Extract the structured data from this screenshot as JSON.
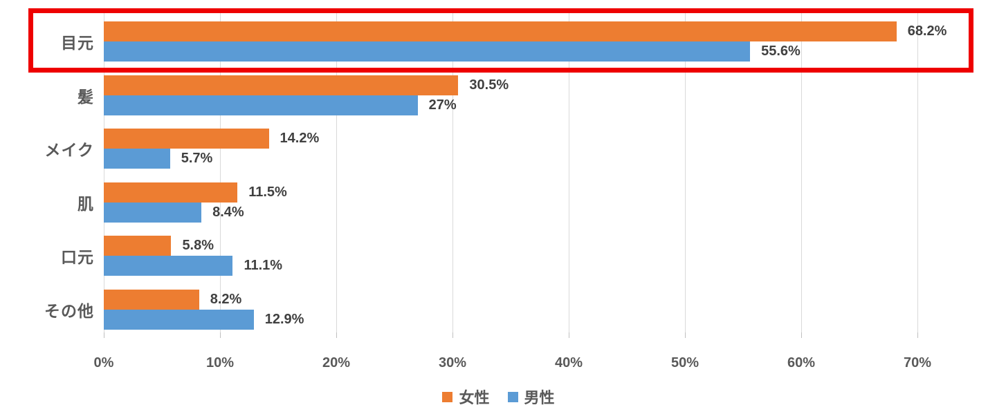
{
  "chart_data": {
    "type": "bar",
    "orientation": "horizontal",
    "title": "",
    "categories": [
      "目元",
      "髪",
      "メイク",
      "肌",
      "口元",
      "その他"
    ],
    "series": [
      {
        "name": "女性",
        "color": "#ED7D31",
        "values": [
          68.2,
          30.5,
          14.2,
          11.5,
          5.8,
          8.2
        ],
        "labels": [
          "68.2%",
          "30.5%",
          "14.2%",
          "11.5%",
          "5.8%",
          "8.2%"
        ]
      },
      {
        "name": "男性",
        "color": "#5B9BD5",
        "values": [
          55.6,
          27,
          5.7,
          8.4,
          11.1,
          12.9
        ],
        "labels": [
          "55.6%",
          "27%",
          "5.7%",
          "8.4%",
          "11.1%",
          "12.9%"
        ]
      }
    ],
    "x_ticks": [
      "0%",
      "10%",
      "20%",
      "30%",
      "40%",
      "50%",
      "60%",
      "70%"
    ],
    "xlim": [
      0,
      70
    ],
    "grid": true,
    "legend_position": "bottom",
    "value_label_color": "#404040",
    "axis_text_color": "#595959",
    "highlight": {
      "category": "目元",
      "box_color": "#EE0000"
    }
  }
}
